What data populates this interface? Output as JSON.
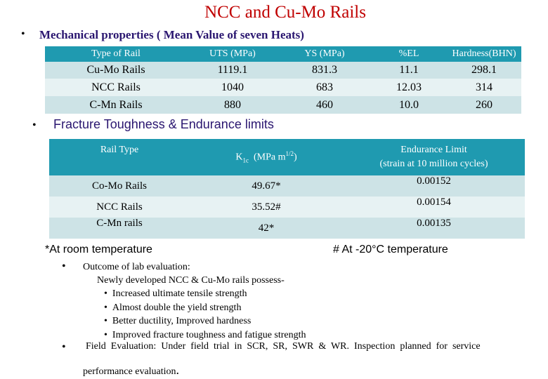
{
  "title": "NCC and Cu-Mo Rails",
  "bullet": "•",
  "section1": {
    "heading": "Mechanical properties ( Mean Value of seven Heats)",
    "headers": [
      "Type of Rail",
      "UTS (MPa)",
      "YS (MPa)",
      "%EL",
      "Hardness(BHN)"
    ],
    "rows": [
      [
        "Cu-Mo Rails",
        "1119.1",
        "831.3",
        "11.1",
        "298.1"
      ],
      [
        "NCC Rails",
        "1040",
        "683",
        "12.03",
        "314"
      ],
      [
        "C-Mn Rails",
        "880",
        "460",
        "10.0",
        "260"
      ]
    ]
  },
  "section2": {
    "heading": "Fracture Toughness & Endurance limits",
    "header_rail": "Rail Type",
    "header_k": "K",
    "header_k_sub": "1c",
    "header_k_unit": "(MPa m",
    "header_k_sup": "1/2",
    "header_k_close": ")",
    "header_endurance_line1": "Endurance Limit",
    "header_endurance_line2": "(strain at 10 million cycles)",
    "rows": [
      {
        "rail": "Co-Mo Rails",
        "k": "49.67*",
        "endurance": "0.00152"
      },
      {
        "rail": "NCC Rails",
        "k": "35.52#",
        "endurance": "0.00154"
      },
      {
        "rail": "C-Mn  rails",
        "k": "42*",
        "endurance": "0.00135"
      }
    ]
  },
  "notes": {
    "room_temp": "*At room temperature",
    "minus20": "# At -20°C temperature"
  },
  "outcome": {
    "title": "Outcome of  lab evaluation:",
    "intro": "Newly developed NCC & Cu-Mo rails possess-",
    "items": [
      "Increased ultimate tensile strength",
      "Almost double the yield strength",
      "Better ductility, Improved hardness",
      "Improved fracture toughness and fatigue strength"
    ]
  },
  "field": {
    "line1": "Field  Evaluation:  Under  field  trial  in  SCR,  SR,  SWR  &  WR.  Inspection  planned  for  service",
    "line2": "performance evaluation",
    "period": "."
  }
}
